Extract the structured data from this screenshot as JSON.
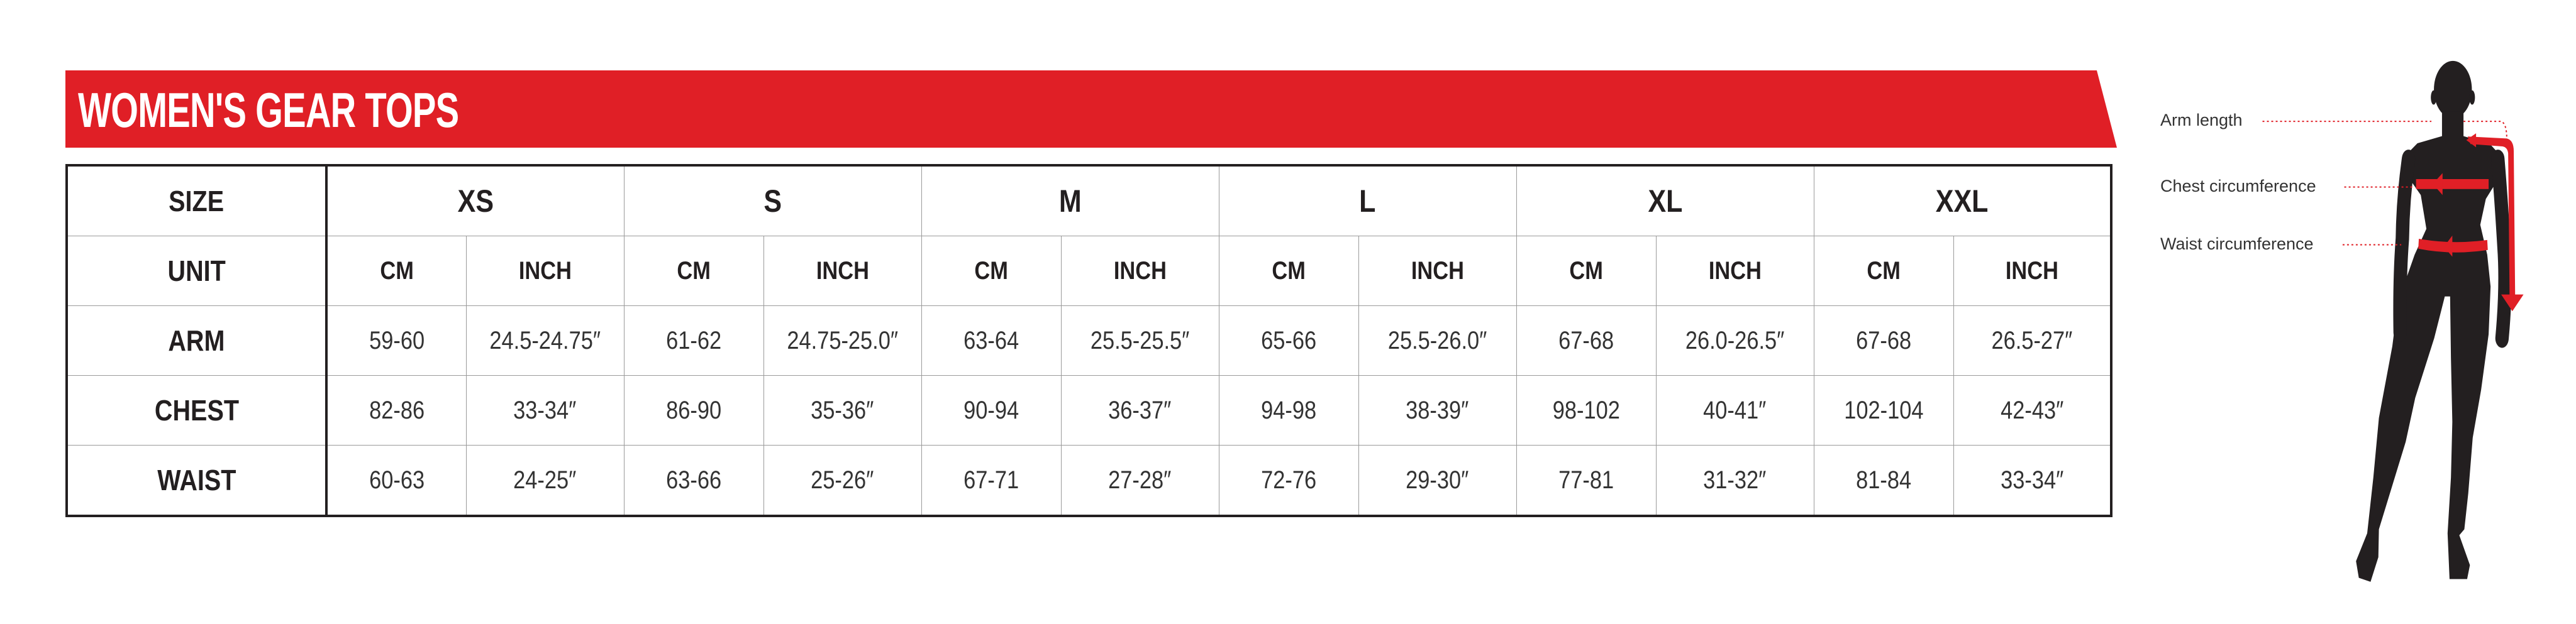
{
  "title": "WOMEN'S GEAR TOPS",
  "colors": {
    "brand_red": "#e01f26",
    "figure": "#231f20"
  },
  "table": {
    "size_label": "SIZE",
    "unit_label": "UNIT",
    "sizes": [
      "XS",
      "S",
      "M",
      "L",
      "XL",
      "XXL"
    ],
    "units": [
      "CM",
      "INCH"
    ],
    "rows": [
      {
        "label": "ARM",
        "values": [
          "59-60",
          "24.5-24.75″",
          "61-62",
          "24.75-25.0″",
          "63-64",
          "25.5-25.5″",
          "65-66",
          "25.5-26.0″",
          "67-68",
          "26.0-26.5″",
          "67-68",
          "26.5-27″"
        ]
      },
      {
        "label": "CHEST",
        "values": [
          "82-86",
          "33-34″",
          "86-90",
          "35-36″",
          "90-94",
          "36-37″",
          "94-98",
          "38-39″",
          "98-102",
          "40-41″",
          "102-104",
          "42-43″"
        ]
      },
      {
        "label": "WAIST",
        "values": [
          "60-63",
          "24-25″",
          "63-66",
          "25-26″",
          "67-71",
          "27-28″",
          "72-76",
          "29-30″",
          "77-81",
          "31-32″",
          "81-84",
          "33-34″"
        ]
      }
    ]
  },
  "figure": {
    "labels": {
      "arm": "Arm length",
      "chest": "Chest circumference",
      "waist": "Waist circumference"
    }
  }
}
